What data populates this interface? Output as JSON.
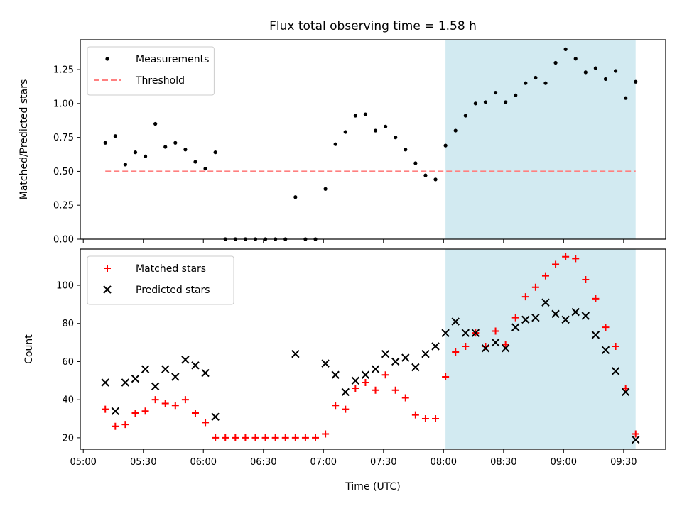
{
  "chart_data": {
    "type": "scatter",
    "title": "Flux total observing time = 1.58 h",
    "xlabel": "Time (UTC)",
    "x_ticks": [
      "05:00",
      "05:30",
      "06:00",
      "06:30",
      "07:00",
      "07:30",
      "08:00",
      "08:30",
      "09:00",
      "09:30"
    ],
    "highlight_span": {
      "start": "08:01",
      "end": "09:36",
      "color": "#add8e6"
    },
    "panels": [
      {
        "ylabel": "Matched/Predicted stars",
        "ylim": [
          0,
          1.47
        ],
        "y_ticks": [
          "0.00",
          "0.25",
          "0.50",
          "0.75",
          "1.00",
          "1.25"
        ],
        "legend_position": "upper-left",
        "series": [
          {
            "name": "Measurements",
            "marker": "dot",
            "color": "#000000",
            "x": [
              "05:11",
              "05:16",
              "05:21",
              "05:26",
              "05:31",
              "05:36",
              "05:41",
              "05:46",
              "05:51",
              "05:56",
              "06:01",
              "06:06",
              "06:11",
              "06:16",
              "06:21",
              "06:26",
              "06:31",
              "06:36",
              "06:41",
              "06:46",
              "06:51",
              "06:56",
              "07:01",
              "07:06",
              "07:11",
              "07:16",
              "07:21",
              "07:26",
              "07:31",
              "07:36",
              "07:41",
              "07:46",
              "07:51",
              "07:56",
              "08:01",
              "08:06",
              "08:11",
              "08:16",
              "08:21",
              "08:26",
              "08:31",
              "08:36",
              "08:41",
              "08:46",
              "08:51",
              "08:56",
              "09:01",
              "09:06",
              "09:11",
              "09:16",
              "09:21",
              "09:26",
              "09:31",
              "09:36"
            ],
            "y": [
              0.71,
              0.76,
              0.55,
              0.64,
              0.61,
              0.85,
              0.68,
              0.71,
              0.66,
              0.57,
              0.52,
              0.64,
              0.0,
              0.0,
              0.0,
              0.0,
              0.0,
              0.0,
              0.0,
              0.31,
              0.0,
              0.0,
              0.37,
              0.7,
              0.79,
              0.91,
              0.92,
              0.8,
              0.83,
              0.75,
              0.66,
              0.56,
              0.47,
              0.44,
              0.69,
              0.8,
              0.91,
              1.0,
              1.01,
              1.08,
              1.01,
              1.06,
              1.15,
              1.19,
              1.15,
              1.3,
              1.4,
              1.33,
              1.23,
              1.26,
              1.18,
              1.24,
              1.04,
              1.16
            ]
          },
          {
            "name": "Threshold",
            "marker": "dashed-line",
            "color": "#ff8080",
            "x": [
              "05:11",
              "09:36"
            ],
            "y": [
              0.5,
              0.5
            ]
          }
        ]
      },
      {
        "ylabel": "Count",
        "ylim": [
          14,
          119
        ],
        "y_ticks": [
          "20",
          "40",
          "60",
          "80",
          "100"
        ],
        "legend_position": "upper-left",
        "series": [
          {
            "name": "Matched stars",
            "marker": "plus",
            "color": "#ff0000",
            "x": [
              "05:11",
              "05:16",
              "05:21",
              "05:26",
              "05:31",
              "05:36",
              "05:41",
              "05:46",
              "05:51",
              "05:56",
              "06:01",
              "06:06",
              "06:11",
              "06:16",
              "06:21",
              "06:26",
              "06:31",
              "06:36",
              "06:41",
              "06:46",
              "06:51",
              "06:56",
              "07:01",
              "07:06",
              "07:11",
              "07:16",
              "07:21",
              "07:26",
              "07:31",
              "07:36",
              "07:41",
              "07:46",
              "07:51",
              "07:56",
              "08:01",
              "08:06",
              "08:11",
              "08:16",
              "08:21",
              "08:26",
              "08:31",
              "08:36",
              "08:41",
              "08:46",
              "08:51",
              "08:56",
              "09:01",
              "09:06",
              "09:11",
              "09:16",
              "09:21",
              "09:26",
              "09:31",
              "09:36"
            ],
            "y": [
              35,
              26,
              27,
              33,
              34,
              40,
              38,
              37,
              40,
              33,
              28,
              20,
              20,
              20,
              20,
              20,
              20,
              20,
              20,
              20,
              20,
              20,
              22,
              37,
              35,
              46,
              49,
              45,
              53,
              45,
              41,
              32,
              30,
              30,
              52,
              65,
              68,
              75,
              68,
              76,
              69,
              83,
              94,
              99,
              105,
              111,
              115,
              114,
              103,
              93,
              78,
              68,
              46,
              22
            ]
          },
          {
            "name": "Predicted stars",
            "marker": "x",
            "color": "#000000",
            "x": [
              "05:11",
              "05:16",
              "05:21",
              "05:26",
              "05:31",
              "05:36",
              "05:41",
              "05:46",
              "05:51",
              "05:56",
              "06:01",
              "06:06",
              "06:46",
              "07:01",
              "07:06",
              "07:11",
              "07:16",
              "07:21",
              "07:26",
              "07:31",
              "07:36",
              "07:41",
              "07:46",
              "07:51",
              "07:56",
              "08:01",
              "08:06",
              "08:11",
              "08:16",
              "08:21",
              "08:26",
              "08:31",
              "08:36",
              "08:41",
              "08:46",
              "08:51",
              "08:56",
              "09:01",
              "09:06",
              "09:11",
              "09:16",
              "09:21",
              "09:26",
              "09:31",
              "09:36"
            ],
            "y": [
              49,
              34,
              49,
              51,
              56,
              47,
              56,
              52,
              61,
              58,
              54,
              31,
              64,
              59,
              53,
              44,
              50,
              53,
              56,
              64,
              60,
              62,
              57,
              64,
              68,
              75,
              81,
              75,
              75,
              67,
              70,
              67,
              78,
              82,
              83,
              91,
              85,
              82,
              86,
              84,
              74,
              66,
              55,
              44,
              19
            ]
          }
        ]
      }
    ]
  }
}
